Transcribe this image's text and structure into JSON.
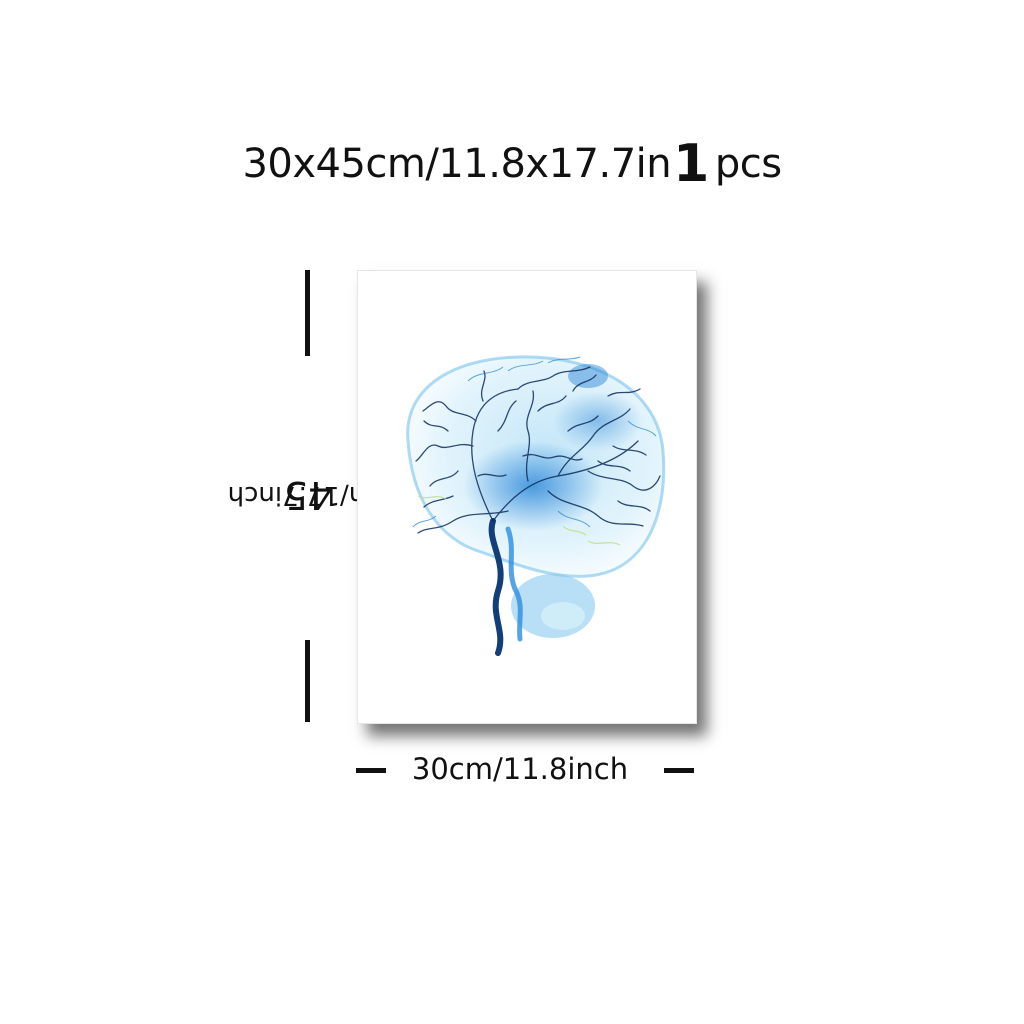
{
  "headline": {
    "size": "30x45cm/11.8x17.7in",
    "quantity": "1",
    "unit": "pcs"
  },
  "height_label": {
    "number": "45",
    "text": "cm/17.7inch"
  },
  "width_label": "30cm/11.8inch",
  "poster": {
    "artwork": "watercolor-brain-vessels",
    "colors": {
      "deep": "#0d2c5c",
      "mid": "#1e7fd6",
      "light": "#8fd0f2",
      "accent": "#b9e07a"
    }
  }
}
